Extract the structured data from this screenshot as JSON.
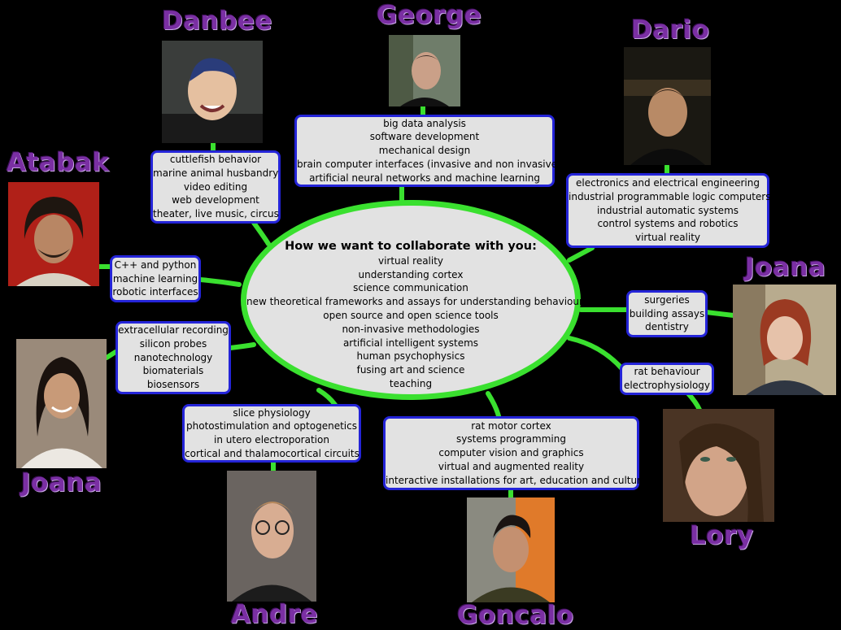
{
  "center": {
    "title": "How we want to collaborate with you:",
    "items": [
      "virtual reality",
      "understanding cortex",
      "science communication",
      "new theoretical frameworks and assays for understanding behaviour",
      "open source and open science tools",
      "non-invasive methodologies",
      "artificial intelligent systems",
      "human psychophysics",
      "fusing art and science",
      "teaching"
    ]
  },
  "people": {
    "danbee": {
      "name": "Danbee",
      "items": [
        "cuttlefish behavior",
        "marine animal husbandry",
        "video editing",
        "web development",
        "theater, live music, circus"
      ]
    },
    "george": {
      "name": "George",
      "items": [
        "big data analysis",
        "software development",
        "mechanical design",
        "brain computer interfaces (invasive and non invasive)",
        "artificial neural networks and machine learning"
      ]
    },
    "dario": {
      "name": "Dario",
      "items": [
        "electronics and electrical engineering",
        "industrial programmable logic computers",
        "industrial automatic systems",
        "control systems and robotics",
        "virtual reality"
      ]
    },
    "atabak": {
      "name": "Atabak",
      "items": [
        "C++ and python",
        "machine learning",
        "robotic interfaces"
      ]
    },
    "joana_right": {
      "name": "Joana",
      "items": [
        "surgeries",
        "building assays",
        "dentistry"
      ]
    },
    "lory": {
      "name": "Lory",
      "items": [
        "rat behaviour",
        "electrophysiology"
      ]
    },
    "joana_left": {
      "name": "Joana",
      "items": [
        "extracellular recording",
        "silicon probes",
        "nanotechnology",
        "biomaterials",
        "biosensors"
      ]
    },
    "andre": {
      "name": "Andre",
      "items": [
        "slice physiology",
        "photostimulation and optogenetics",
        "in utero electroporation",
        "cortical and thalamocortical circuits"
      ]
    },
    "goncalo": {
      "name": "Goncalo",
      "items": [
        "rat motor cortex",
        "systems programming",
        "computer vision and graphics",
        "virtual and augmented reality",
        "interactive installations for art, education and culture"
      ]
    }
  },
  "colors": {
    "connector": "#3ae02f",
    "box_border": "#2424d8",
    "box_fill": "#e2e2e2",
    "name_text": "#7a2fa3",
    "background": "#000000"
  }
}
